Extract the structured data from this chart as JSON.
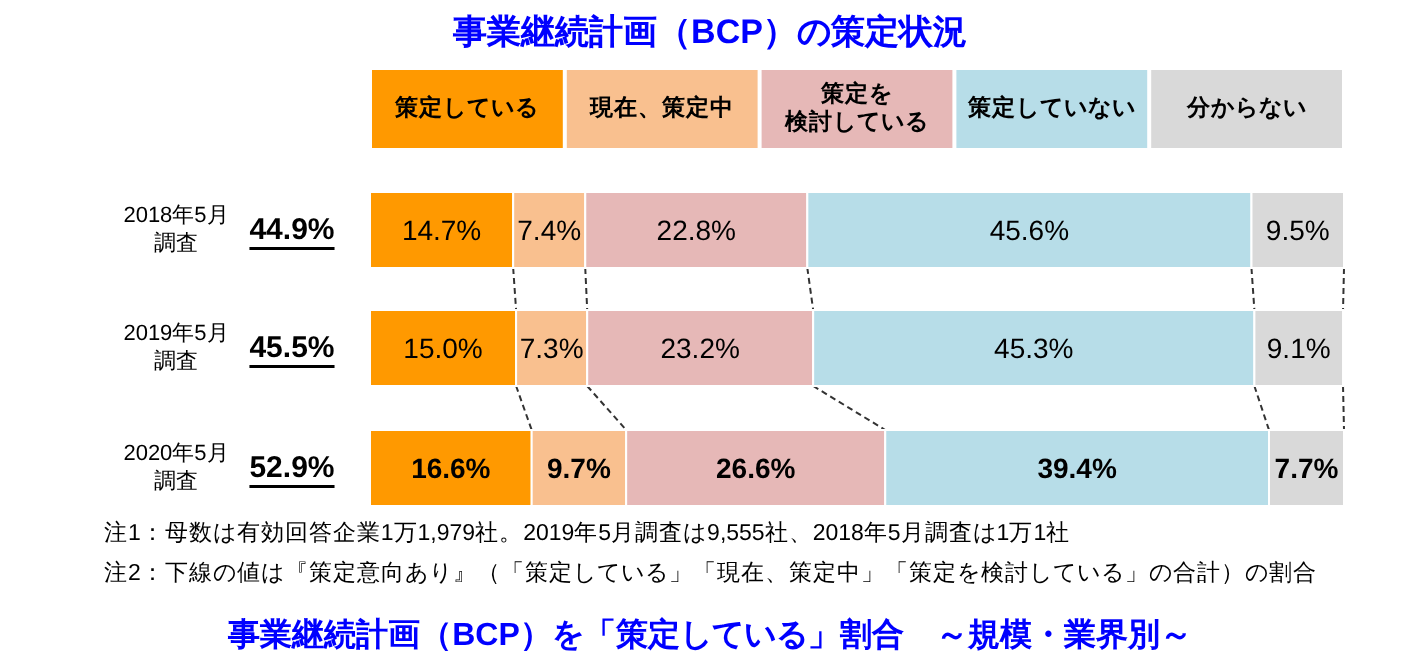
{
  "chart_data": {
    "type": "bar",
    "orientation": "horizontal",
    "stacked": true,
    "legend": "top",
    "title": "事業継続計画（BCP）の策定状況",
    "categories": [
      "2018年5月調査",
      "2019年5月調査",
      "2020年5月調査"
    ],
    "series": [
      {
        "name": "策定している",
        "color": "#ff9900",
        "values": [
          14.7,
          15.0,
          16.6
        ],
        "value_labels": [
          "14.7%",
          "15.0%",
          "16.6%"
        ]
      },
      {
        "name": "現在、策定中",
        "color": "#f9c08f",
        "values": [
          7.4,
          7.3,
          9.7
        ],
        "value_labels": [
          "7.4%",
          "7.3%",
          "9.7%"
        ]
      },
      {
        "name": "策定を検討している",
        "color": "#e6b8b7",
        "values": [
          22.8,
          23.2,
          26.6
        ],
        "value_labels": [
          "22.8%",
          "23.2%",
          "26.6%"
        ]
      },
      {
        "name": "策定していない",
        "color": "#b7dde8",
        "values": [
          45.6,
          45.3,
          39.4
        ],
        "value_labels": [
          "45.6%",
          "45.3%",
          "39.4%"
        ]
      },
      {
        "name": "分からない",
        "color": "#d9d9d9",
        "values": [
          9.5,
          9.1,
          7.7
        ],
        "value_labels": [
          "9.5%",
          "9.1%",
          "7.7%"
        ]
      }
    ],
    "annotations": [
      "44.9%",
      "45.5%",
      "52.9%",
      "注1：母数は有効回答企業1万1,979社。2019年5月調査は9,555社、2018年5月調査は1万1社",
      "注2：下線の値は『策定意向あり』（「策定している」「現在、策定中」「策定を検討している」の合計）の割合",
      "事業継続計画（BCP）を「策定している」割合　～規模・業界別～"
    ]
  }
}
